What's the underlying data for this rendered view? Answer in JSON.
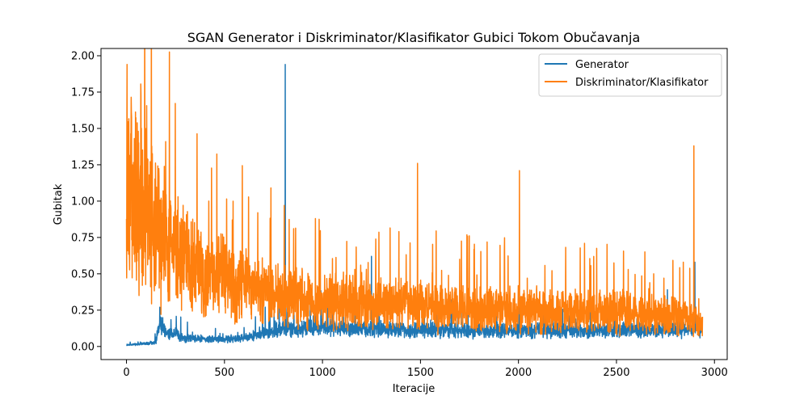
{
  "chart_data": {
    "type": "line",
    "title": "SGAN Generator i Diskriminator/Klasifikator Gubici Tokom Obučavanja",
    "xlabel": "Iteracije",
    "ylabel": "Gubitak",
    "xlim": [
      -130,
      3065
    ],
    "ylim": [
      -0.09,
      2.05
    ],
    "xticks": [
      0,
      500,
      1000,
      1500,
      2000,
      2500,
      3000
    ],
    "yticks": [
      0.0,
      0.25,
      0.5,
      0.75,
      1.0,
      1.25,
      1.5,
      1.75,
      2.0
    ],
    "grid": false,
    "legend_position": "top-right",
    "n_points": 2940,
    "series": [
      {
        "name": "Generator",
        "color": "#1f77b4",
        "seed": 7,
        "noise_scale": 0.35,
        "trend": [
          [
            0,
            0.01
          ],
          [
            100,
            0.02
          ],
          [
            150,
            0.03
          ],
          [
            170,
            0.17
          ],
          [
            200,
            0.1
          ],
          [
            300,
            0.06
          ],
          [
            400,
            0.05
          ],
          [
            500,
            0.05
          ],
          [
            600,
            0.06
          ],
          [
            700,
            0.09
          ],
          [
            800,
            0.12
          ],
          [
            1000,
            0.13
          ],
          [
            1200,
            0.12
          ],
          [
            1500,
            0.11
          ],
          [
            2000,
            0.11
          ],
          [
            2500,
            0.11
          ],
          [
            2900,
            0.12
          ],
          [
            2940,
            0.13
          ]
        ],
        "spikes": [
          [
            170,
            0.27
          ],
          [
            810,
            1.94
          ],
          [
            1250,
            0.62
          ],
          [
            1000,
            0.26
          ],
          [
            1520,
            0.27
          ],
          [
            2760,
            0.39
          ],
          [
            2900,
            0.58
          ],
          [
            600,
            0.13
          ]
        ]
      },
      {
        "name": "Diskriminator/Klasifikator",
        "color": "#ff7f0e",
        "seed": 13,
        "noise_scale": 0.45,
        "trend": [
          [
            0,
            1.12
          ],
          [
            30,
            1.05
          ],
          [
            80,
            0.95
          ],
          [
            150,
            0.8
          ],
          [
            200,
            0.7
          ],
          [
            300,
            0.58
          ],
          [
            400,
            0.5
          ],
          [
            500,
            0.46
          ],
          [
            600,
            0.42
          ],
          [
            700,
            0.38
          ],
          [
            800,
            0.34
          ],
          [
            1000,
            0.32
          ],
          [
            1200,
            0.3
          ],
          [
            1500,
            0.28
          ],
          [
            1800,
            0.26
          ],
          [
            2000,
            0.25
          ],
          [
            2300,
            0.24
          ],
          [
            2600,
            0.23
          ],
          [
            2900,
            0.2
          ],
          [
            2940,
            0.14
          ]
        ],
        "spikes": [
          [
            3,
            1.94
          ],
          [
            25,
            1.61
          ],
          [
            60,
            1.48
          ],
          [
            100,
            1.5
          ],
          [
            420,
            1.0
          ],
          [
            540,
            0.87
          ],
          [
            670,
            0.92
          ],
          [
            805,
            0.97
          ],
          [
            1390,
            0.79
          ],
          [
            1485,
            1.26
          ],
          [
            1700,
            0.6
          ],
          [
            2005,
            1.21
          ],
          [
            2560,
            0.53
          ],
          [
            2895,
            1.38
          ],
          [
            2690,
            0.5
          ]
        ]
      }
    ]
  }
}
